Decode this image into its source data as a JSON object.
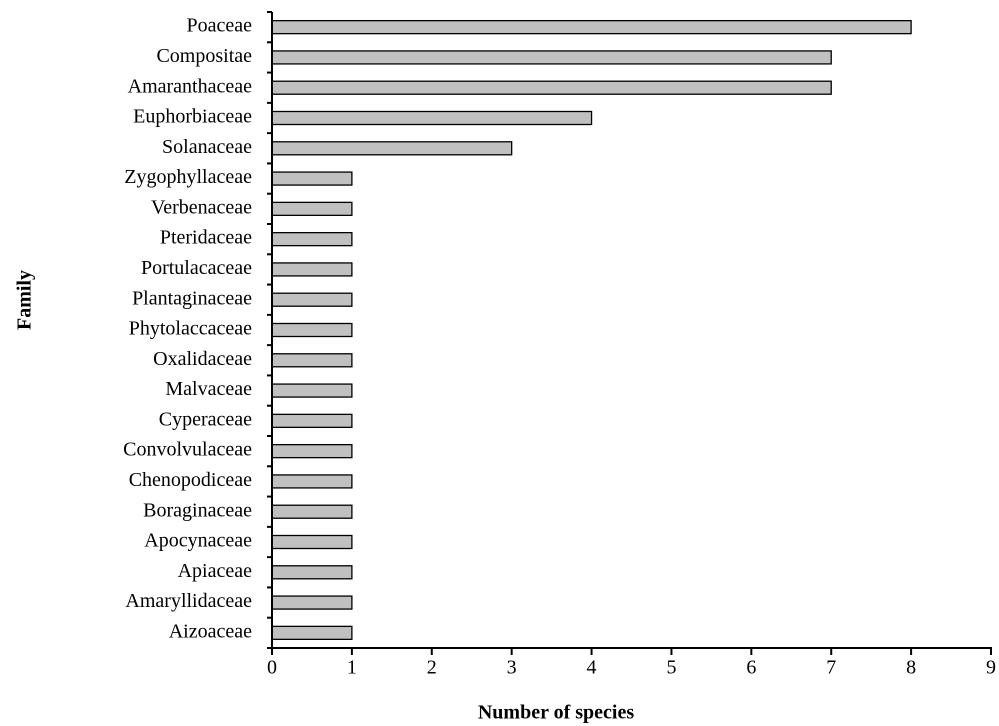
{
  "chart_data": {
    "type": "bar",
    "orientation": "horizontal",
    "x_label": "Number of species",
    "y_label": "Family",
    "categories": [
      "Poaceae",
      "Compositae",
      "Amaranthaceae",
      "Euphorbiaceae",
      "Solanaceae",
      "Zygophyllaceae",
      "Verbenaceae",
      "Pteridaceae",
      "Portulacaceae",
      "Plantaginaceae",
      "Phytolaccaceae",
      "Oxalidaceae",
      "Malvaceae",
      "Cyperaceae",
      "Convolvulaceae",
      "Chenopodiceae",
      "Boraginaceae",
      "Apocynaceae",
      "Apiaceae",
      "Amaryllidaceae",
      "Aizoaceae"
    ],
    "values": [
      8,
      7,
      7,
      4,
      3,
      1,
      1,
      1,
      1,
      1,
      1,
      1,
      1,
      1,
      1,
      1,
      1,
      1,
      1,
      1,
      1
    ],
    "color": "#c0c0c0",
    "xlim": [
      0,
      9
    ],
    "xticks": [
      0,
      1,
      2,
      3,
      4,
      5,
      6,
      7,
      8,
      9
    ]
  }
}
